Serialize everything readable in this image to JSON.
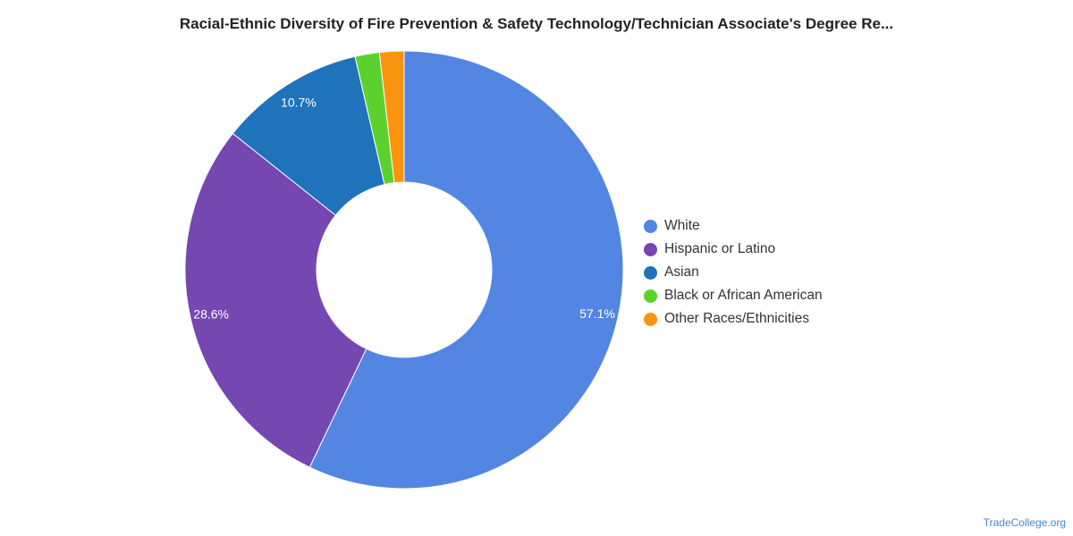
{
  "chart_data": {
    "type": "pie",
    "variant": "donut",
    "title": "Racial-Ethnic Diversity of Fire Prevention & Safety Technology/Technician Associate's Degree Re...",
    "legend_position": "right",
    "slices": [
      {
        "label": "White",
        "value": 57.1,
        "value_label": "57.1%",
        "color": "#5286e2"
      },
      {
        "label": "Hispanic or Latino",
        "value": 28.6,
        "value_label": "28.6%",
        "color": "#7547b0"
      },
      {
        "label": "Asian",
        "value": 10.7,
        "value_label": "10.7%",
        "color": "#1f73bb"
      },
      {
        "label": "Black or African American",
        "value": 1.8,
        "value_label": "",
        "color": "#5cd12e"
      },
      {
        "label": "Other Races/Ethnicities",
        "value": 1.8,
        "value_label": "",
        "color": "#f8940d"
      }
    ]
  },
  "footer": {
    "source": "TradeCollege.org"
  }
}
